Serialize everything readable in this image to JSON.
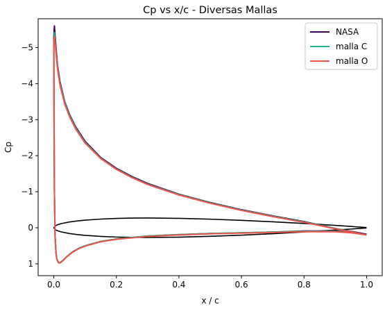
{
  "chart_data": {
    "type": "line",
    "title": "Cp vs x/c - Diversas Mallas",
    "xlabel": "x / c",
    "ylabel": "Cp",
    "xlim": [
      -0.05,
      1.05
    ],
    "ylim": [
      1.33,
      -5.8
    ],
    "y_inverted": true,
    "grid": false,
    "legend_position": "top-right",
    "x_ticks": [
      {
        "value": 0.0,
        "label": "0.0"
      },
      {
        "value": 0.2,
        "label": "0.2"
      },
      {
        "value": 0.4,
        "label": "0.4"
      },
      {
        "value": 0.6,
        "label": "0.6"
      },
      {
        "value": 0.8,
        "label": "0.8"
      },
      {
        "value": 1.0,
        "label": "1.0"
      }
    ],
    "y_ticks": [
      {
        "value": -5,
        "label": "−5"
      },
      {
        "value": -4,
        "label": "−4"
      },
      {
        "value": -3,
        "label": "−3"
      },
      {
        "value": -2,
        "label": "−2"
      },
      {
        "value": -1,
        "label": "−1"
      },
      {
        "value": 0,
        "label": "0"
      },
      {
        "value": 1,
        "label": "1"
      }
    ],
    "series": [
      {
        "name": "NASA",
        "color": "#440154",
        "upper": {
          "x": [
            1.0,
            0.9,
            0.8,
            0.7,
            0.6,
            0.5,
            0.4,
            0.3,
            0.25,
            0.2,
            0.15,
            0.1,
            0.07,
            0.05,
            0.035,
            0.02,
            0.012,
            0.007,
            0.004,
            0.002,
            0.0
          ],
          "y": [
            0.18,
            0.02,
            -0.17,
            -0.33,
            -0.5,
            -0.7,
            -0.93,
            -1.23,
            -1.42,
            -1.65,
            -1.95,
            -2.4,
            -2.8,
            -3.15,
            -3.5,
            -4.05,
            -4.5,
            -5.0,
            -5.35,
            -5.6,
            -5.3
          ]
        },
        "lower": {
          "x": [
            0.0,
            0.0008,
            0.002,
            0.004,
            0.007,
            0.01,
            0.015,
            0.02,
            0.03,
            0.04,
            0.06,
            0.08,
            0.1,
            0.15,
            0.2,
            0.3,
            0.4,
            0.5,
            0.6,
            0.7,
            0.8,
            0.9,
            0.95,
            1.0
          ],
          "y": [
            -5.3,
            -3.0,
            -1.0,
            0.2,
            0.7,
            0.88,
            0.97,
            0.97,
            0.9,
            0.81,
            0.67,
            0.57,
            0.5,
            0.38,
            0.31,
            0.23,
            0.19,
            0.16,
            0.14,
            0.12,
            0.09,
            0.09,
            0.12,
            0.18
          ]
        }
      },
      {
        "name": "malla C",
        "color": "#22b37e",
        "upper": {
          "x": [
            1.0,
            0.9,
            0.8,
            0.7,
            0.6,
            0.5,
            0.4,
            0.3,
            0.25,
            0.2,
            0.15,
            0.1,
            0.07,
            0.05,
            0.035,
            0.02,
            0.012,
            0.007,
            0.004,
            0.002,
            0.0
          ],
          "y": [
            0.2,
            0.02,
            -0.16,
            -0.32,
            -0.49,
            -0.69,
            -0.92,
            -1.21,
            -1.4,
            -1.63,
            -1.93,
            -2.37,
            -2.77,
            -3.12,
            -3.47,
            -4.0,
            -4.45,
            -4.9,
            -5.2,
            -5.42,
            -5.15
          ]
        },
        "lower": {
          "x": [
            0.0,
            0.0008,
            0.002,
            0.004,
            0.007,
            0.01,
            0.015,
            0.02,
            0.03,
            0.04,
            0.06,
            0.08,
            0.1,
            0.15,
            0.2,
            0.3,
            0.4,
            0.5,
            0.6,
            0.7,
            0.8,
            0.9,
            0.95,
            1.0
          ],
          "y": [
            -5.15,
            -3.0,
            -1.0,
            0.2,
            0.7,
            0.88,
            0.96,
            0.97,
            0.9,
            0.81,
            0.67,
            0.57,
            0.5,
            0.38,
            0.31,
            0.23,
            0.19,
            0.16,
            0.14,
            0.12,
            0.1,
            0.1,
            0.13,
            0.2
          ]
        }
      },
      {
        "name": "malla O",
        "color": "#f0524b",
        "upper": {
          "x": [
            1.0,
            0.9,
            0.8,
            0.7,
            0.6,
            0.5,
            0.4,
            0.3,
            0.25,
            0.2,
            0.15,
            0.1,
            0.07,
            0.05,
            0.035,
            0.02,
            0.012,
            0.007,
            0.004,
            0.002,
            0.0
          ],
          "y": [
            0.2,
            0.03,
            -0.15,
            -0.31,
            -0.48,
            -0.68,
            -0.91,
            -1.2,
            -1.39,
            -1.62,
            -1.92,
            -2.35,
            -2.74,
            -3.09,
            -3.43,
            -3.95,
            -4.4,
            -4.85,
            -5.15,
            -5.3,
            -5.05
          ]
        },
        "lower": {
          "x": [
            0.0,
            0.0008,
            0.002,
            0.004,
            0.007,
            0.01,
            0.015,
            0.02,
            0.03,
            0.04,
            0.06,
            0.08,
            0.1,
            0.15,
            0.2,
            0.3,
            0.4,
            0.5,
            0.6,
            0.7,
            0.8,
            0.9,
            0.95,
            1.0
          ],
          "y": [
            -5.05,
            -3.0,
            -1.0,
            0.2,
            0.7,
            0.88,
            0.96,
            0.98,
            0.91,
            0.82,
            0.68,
            0.58,
            0.51,
            0.39,
            0.32,
            0.24,
            0.2,
            0.17,
            0.15,
            0.13,
            0.11,
            0.11,
            0.14,
            0.2
          ]
        }
      }
    ],
    "airfoil_outline": {
      "color": "#000000",
      "thickness_ratio": 0.12,
      "cp_scale": 4.5,
      "x": [
        1.0,
        0.95,
        0.9,
        0.8,
        0.7,
        0.6,
        0.5,
        0.4,
        0.3,
        0.25,
        0.2,
        0.15,
        0.1,
        0.075,
        0.05,
        0.025,
        0.0125,
        0.005,
        0.0
      ]
    }
  }
}
